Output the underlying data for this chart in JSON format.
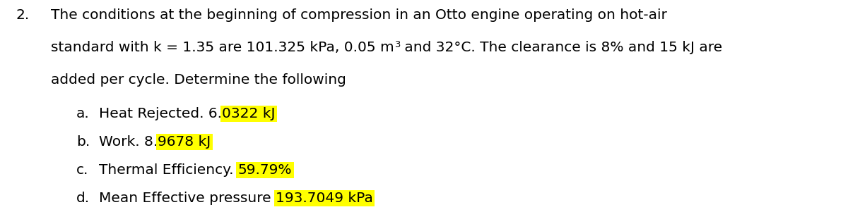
{
  "background_color": "#ffffff",
  "figsize": [
    12.0,
    3.01
  ],
  "dpi": 100,
  "number": "2.",
  "line1": "The conditions at the beginning of compression in an Otto engine operating on hot-air",
  "line2_prefix": "standard with k = 1.35 are 101.325 kPa, 0.05 m",
  "line2_super": "3",
  "line2_suffix": " and 32°C. The clearance is 8% and 15 kJ are",
  "line3": "added per cycle. Determine the following",
  "item_a_label": "a.",
  "item_a_text": "Heat Rejected. 6.",
  "item_a_highlight": "0322 kJ",
  "item_b_label": "b.",
  "item_b_text": "Work. 8.",
  "item_b_highlight": "9678 kJ",
  "item_c_label": "c.",
  "item_c_text": "Thermal Efficiency. ",
  "item_c_highlight": "59.79%",
  "item_d_label": "d.",
  "item_d_text": "Mean Effective pressure ",
  "item_d_highlight": "193.7049 kPa",
  "highlight_color": "#ffff00",
  "text_color": "#000000",
  "font_size": 14.5,
  "font_family": "DejaVu Sans"
}
